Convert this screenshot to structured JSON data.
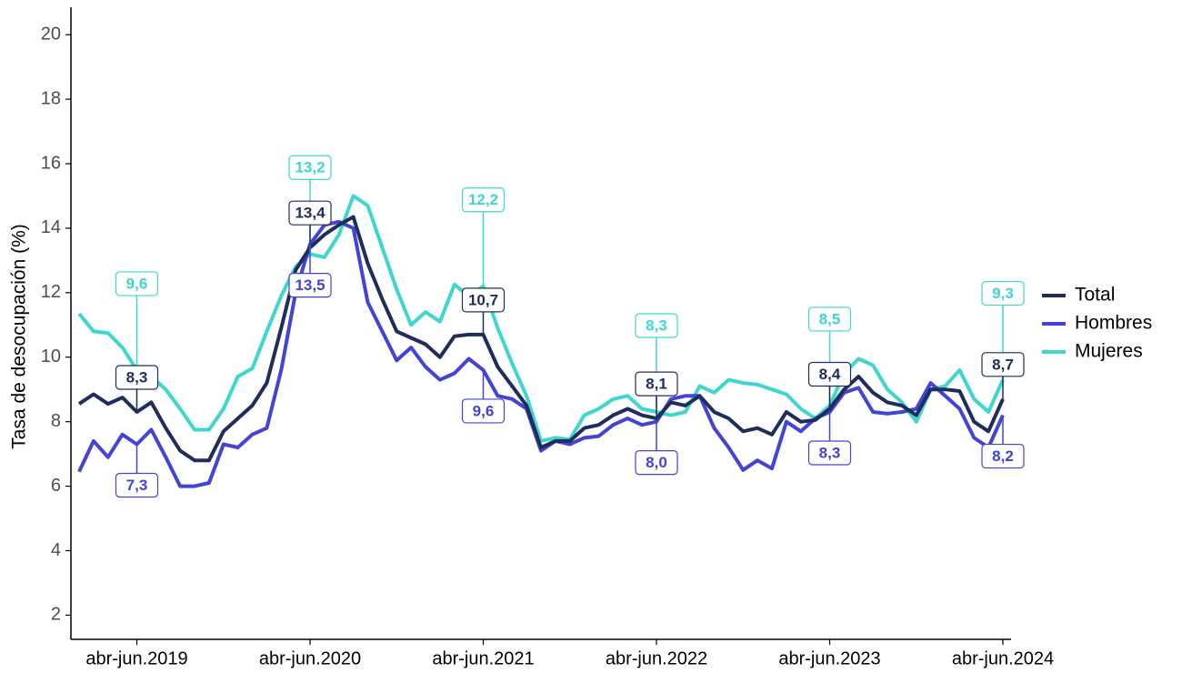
{
  "chart_data": {
    "type": "line",
    "y_label": "Tasa de desocupación (%)",
    "categories": [
      null,
      null,
      null,
      null,
      "abr-jun.2019",
      null,
      null,
      null,
      null,
      null,
      null,
      null,
      null,
      null,
      null,
      null,
      "abr-jun.2020",
      null,
      null,
      null,
      null,
      null,
      null,
      null,
      null,
      null,
      null,
      null,
      "abr-jun.2021",
      null,
      null,
      null,
      null,
      null,
      null,
      null,
      null,
      null,
      null,
      null,
      "abr-jun.2022",
      null,
      null,
      null,
      null,
      null,
      null,
      null,
      null,
      null,
      null,
      null,
      "abr-jun.2023",
      null,
      null,
      null,
      null,
      null,
      null,
      null,
      null,
      null,
      null,
      null,
      "abr-jun.2024"
    ],
    "series": [
      {
        "name": "Total",
        "color": "#1f2d5c",
        "values": [
          8.55,
          8.85,
          8.55,
          8.75,
          8.3,
          8.6,
          7.8,
          7.1,
          6.8,
          6.8,
          7.7,
          8.1,
          8.5,
          9.2,
          10.9,
          12.7,
          13.4,
          13.8,
          14.1,
          14.35,
          12.9,
          11.8,
          10.8,
          10.6,
          10.4,
          10.0,
          10.65,
          10.7,
          10.7,
          9.7,
          9.1,
          8.5,
          7.2,
          7.4,
          7.4,
          7.8,
          7.9,
          8.2,
          8.4,
          8.2,
          8.1,
          8.6,
          8.5,
          8.8,
          8.3,
          8.1,
          7.7,
          7.8,
          7.6,
          8.3,
          8.0,
          8.05,
          8.4,
          9.0,
          9.4,
          8.9,
          8.6,
          8.5,
          8.2,
          9.0,
          9.0,
          8.95,
          8.0,
          7.7,
          8.7
        ],
        "value_labels": [
          null,
          null,
          null,
          null,
          "8,3",
          null,
          null,
          null,
          null,
          null,
          null,
          null,
          null,
          null,
          null,
          null,
          "13,4",
          null,
          null,
          null,
          null,
          null,
          null,
          null,
          null,
          null,
          null,
          null,
          "10,7",
          null,
          null,
          null,
          null,
          null,
          null,
          null,
          null,
          null,
          null,
          null,
          "8,1",
          null,
          null,
          null,
          null,
          null,
          null,
          null,
          null,
          null,
          null,
          null,
          "8,4",
          null,
          null,
          null,
          null,
          null,
          null,
          null,
          null,
          null,
          null,
          null,
          "8,7"
        ]
      },
      {
        "name": "Hombres",
        "color": "#4343d6",
        "values": [
          6.45,
          7.4,
          6.9,
          7.6,
          7.3,
          7.75,
          6.9,
          6.0,
          6.0,
          6.1,
          7.3,
          7.2,
          7.6,
          7.8,
          9.6,
          12.0,
          13.5,
          14.1,
          14.2,
          14.0,
          11.7,
          10.8,
          9.9,
          10.3,
          9.7,
          9.3,
          9.5,
          9.95,
          9.6,
          8.8,
          8.7,
          8.4,
          7.1,
          7.4,
          7.3,
          7.5,
          7.55,
          7.9,
          8.1,
          7.9,
          8.0,
          8.7,
          8.8,
          8.8,
          7.8,
          7.2,
          6.5,
          6.8,
          6.55,
          8.0,
          7.7,
          8.1,
          8.3,
          8.9,
          9.05,
          8.3,
          8.25,
          8.3,
          8.4,
          9.2,
          8.8,
          8.4,
          7.5,
          7.2,
          8.2
        ],
        "value_labels": [
          null,
          null,
          null,
          null,
          "7,3",
          null,
          null,
          null,
          null,
          null,
          null,
          null,
          null,
          null,
          null,
          null,
          "13,5",
          null,
          null,
          null,
          null,
          null,
          null,
          null,
          null,
          null,
          null,
          null,
          "9,6",
          null,
          null,
          null,
          null,
          null,
          null,
          null,
          null,
          null,
          null,
          null,
          "8,0",
          null,
          null,
          null,
          null,
          null,
          null,
          null,
          null,
          null,
          null,
          null,
          "8,3",
          null,
          null,
          null,
          null,
          null,
          null,
          null,
          null,
          null,
          null,
          null,
          "8,2"
        ]
      },
      {
        "name": "Mujeres",
        "color": "#3fd6d0",
        "values": [
          11.35,
          10.8,
          10.75,
          10.3,
          9.6,
          9.4,
          9.0,
          8.4,
          7.75,
          7.75,
          8.4,
          9.4,
          9.65,
          10.8,
          11.9,
          12.8,
          13.2,
          13.1,
          13.8,
          15.0,
          14.7,
          13.4,
          12.1,
          11.0,
          11.4,
          11.1,
          12.25,
          11.9,
          12.2,
          10.9,
          9.8,
          8.8,
          7.4,
          7.5,
          7.45,
          8.2,
          8.4,
          8.7,
          8.8,
          8.4,
          8.3,
          8.2,
          8.3,
          9.1,
          8.9,
          9.3,
          9.2,
          9.15,
          9.0,
          8.85,
          8.4,
          8.1,
          8.5,
          9.5,
          9.95,
          9.75,
          9.0,
          8.6,
          8.0,
          9.0,
          9.1,
          9.6,
          8.7,
          8.3,
          9.3
        ],
        "value_labels": [
          null,
          null,
          null,
          null,
          "9,6",
          null,
          null,
          null,
          null,
          null,
          null,
          null,
          null,
          null,
          null,
          null,
          "13,2",
          null,
          null,
          null,
          null,
          null,
          null,
          null,
          null,
          null,
          null,
          null,
          "12,2",
          null,
          null,
          null,
          null,
          null,
          null,
          null,
          null,
          null,
          null,
          null,
          "8,3",
          null,
          null,
          null,
          null,
          null,
          null,
          null,
          null,
          null,
          null,
          null,
          "8,5",
          null,
          null,
          null,
          null,
          null,
          null,
          null,
          null,
          null,
          null,
          null,
          "9,3"
        ]
      }
    ],
    "ylim": [
      1.25,
      20.85
    ],
    "yticks": [
      2,
      4,
      6,
      8,
      10,
      12,
      14,
      16,
      18,
      20
    ],
    "grid": false,
    "legend": "right"
  }
}
